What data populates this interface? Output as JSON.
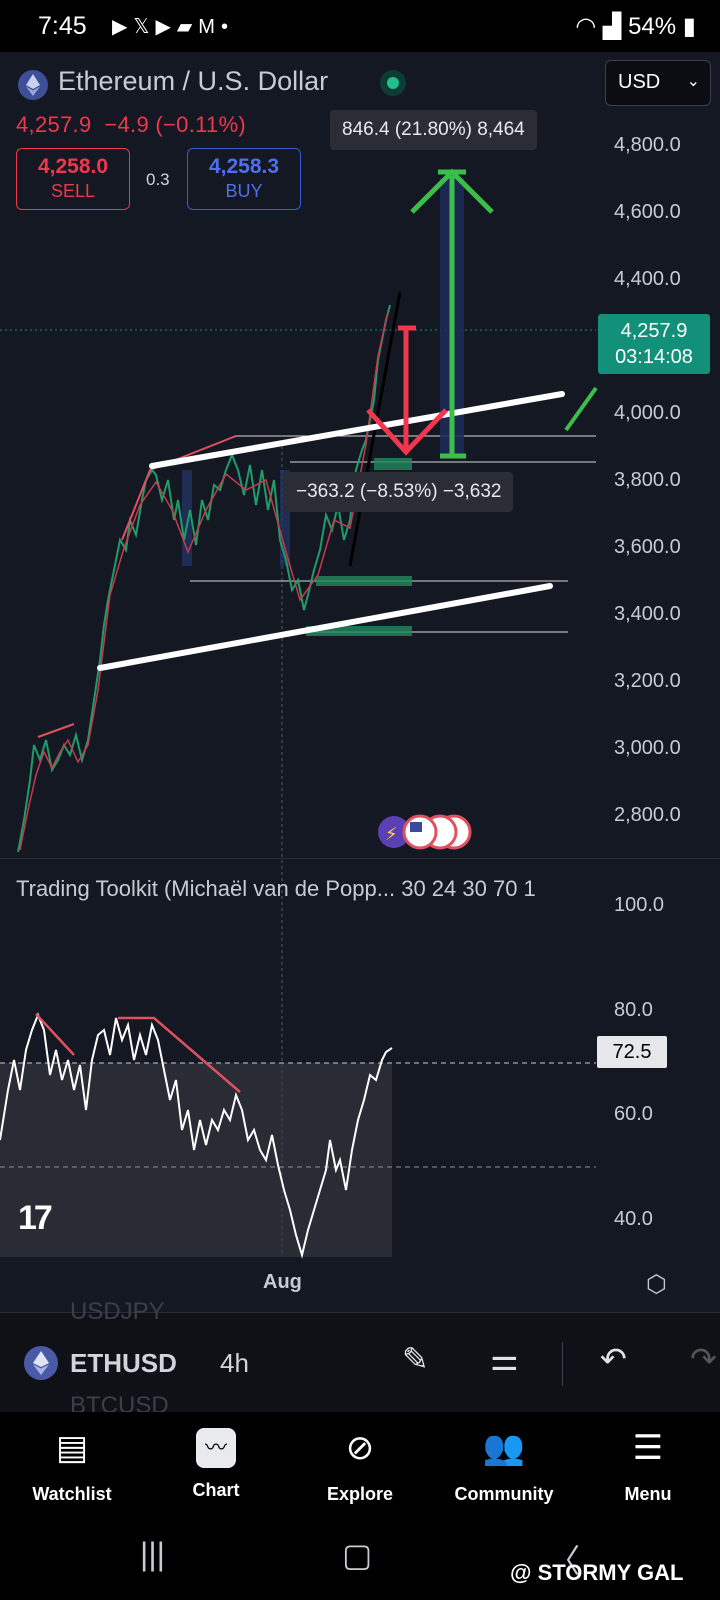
{
  "status_bar": {
    "time": "7:45",
    "notification_icons": [
      "youtube-icon",
      "x-icon",
      "youtube-icon",
      "photos-icon",
      "gmail-icon",
      "dot-icon"
    ],
    "battery": "54%"
  },
  "header": {
    "pair": "Ethereum / U.S. Dollar",
    "currency": "USD",
    "last_price": "4,257.9",
    "change": "−4.9",
    "change_pct": "(−0.11%)",
    "sell_price": "4,258.0",
    "sell_label": "SELL",
    "spread": "0.3",
    "buy_price": "4,258.3",
    "buy_label": "BUY"
  },
  "price_axis": [
    "4,800.0",
    "4,600.0",
    "4,400.0",
    "4,000.0",
    "3,800.0",
    "3,600.0",
    "3,400.0",
    "3,200.0",
    "3,000.0",
    "2,800.0"
  ],
  "price_badge": {
    "price": "4,257.9",
    "countdown": "03:14:08",
    "color": "#129079"
  },
  "measurements": {
    "up": "846.4 (21.80%) 8,464",
    "down": "−363.2 (−8.53%) −3,632"
  },
  "indicator": {
    "title": "Trading Toolkit (Michaël van de Popp... 30 24 30 70 1",
    "axis": [
      "100.0",
      "80.0",
      "60.0",
      "40.0"
    ],
    "current_value": "72.5"
  },
  "x_axis": {
    "label": "Aug"
  },
  "symbol_bar": {
    "ghost_above": "USDJPY",
    "ghost_below": "BTCUSD",
    "symbol": "ETHUSD",
    "interval": "4h"
  },
  "nav": {
    "watchlist": "Watchlist",
    "chart": "Chart",
    "explore": "Explore",
    "community": "Community",
    "menu": "Menu"
  },
  "watermark": "@ STORMY GAL",
  "colors": {
    "accent_green": "#22c08a",
    "accent_red": "#f0374d",
    "buy_blue": "#4f6fef",
    "background": "#141823"
  }
}
